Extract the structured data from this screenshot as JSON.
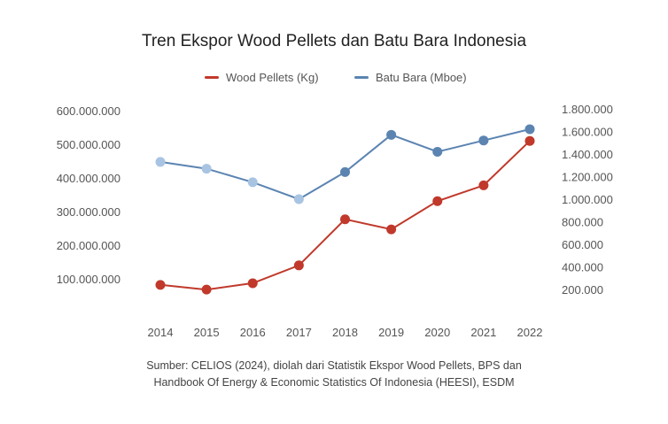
{
  "chart_data": {
    "type": "line",
    "title": "Tren Ekspor Wood Pellets dan Batu Bara Indonesia",
    "categories": [
      "2014",
      "2015",
      "2016",
      "2017",
      "2018",
      "2019",
      "2020",
      "2021",
      "2022"
    ],
    "series": [
      {
        "name": "Wood Pellets (Kg)",
        "axis": "left",
        "color": "#c0392b",
        "values": [
          82000000,
          68000000,
          87000000,
          140000000,
          277000000,
          247000000,
          331000000,
          378000000,
          510000000
        ]
      },
      {
        "name": "Batu Bara (Mboe)",
        "axis": "right",
        "color": "#5b84b1",
        "point_colors": [
          "#a8c4e2",
          "#a8c4e2",
          "#a8c4e2",
          "#a8c4e2",
          "#5b84b1",
          "#5b84b1",
          "#5b84b1",
          "#5b84b1",
          "#5b84b1"
        ],
        "values": [
          1330000,
          1270000,
          1150000,
          1000000,
          1240000,
          1570000,
          1420000,
          1520000,
          1620000
        ]
      }
    ],
    "left_axis": {
      "ticks": [
        100000000,
        200000000,
        300000000,
        400000000,
        500000000,
        600000000
      ],
      "tick_labels": [
        "100.000.000",
        "200.000.000",
        "300.000.000",
        "400.000.000",
        "500.000.000",
        "600.000.000"
      ],
      "ylim": [
        0,
        600000000
      ]
    },
    "right_axis": {
      "ticks": [
        200000,
        400000,
        600000,
        800000,
        1000000,
        1200000,
        1400000,
        1600000,
        1800000
      ],
      "tick_labels": [
        "200.000",
        "400.000",
        "600.000",
        "800.000",
        "1.000.000",
        "1.200.000",
        "1.400.000",
        "1.600.000",
        "1.800.000"
      ],
      "ylim": [
        200000,
        1800000
      ]
    },
    "grid": false,
    "legend_position": "top-center"
  },
  "source": {
    "line1": "Sumber: CELIOS (2024), diolah dari Statistik Ekspor Wood Pellets, BPS dan",
    "line2": "Handbook Of Energy & Economic Statistics Of Indonesia (HEESI), ESDM"
  }
}
